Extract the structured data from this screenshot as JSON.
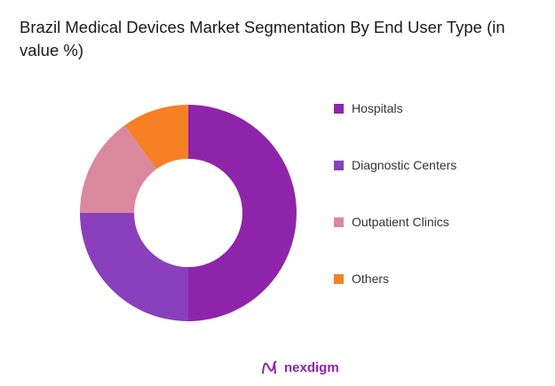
{
  "chart_data": {
    "type": "pie",
    "title": "Brazil Medical Devices Market Segmentation By End User Type (in value %)",
    "categories": [
      "Hospitals",
      "Diagnostic Centers",
      "Outpatient Clinics",
      "Others"
    ],
    "values": [
      50,
      25,
      15,
      10
    ],
    "colors": [
      "#8e24aa",
      "#8a3fbc",
      "#db889f",
      "#f58025"
    ],
    "donut": true,
    "legend_position": "right"
  },
  "brand": {
    "logo_text": "nexdigm"
  }
}
